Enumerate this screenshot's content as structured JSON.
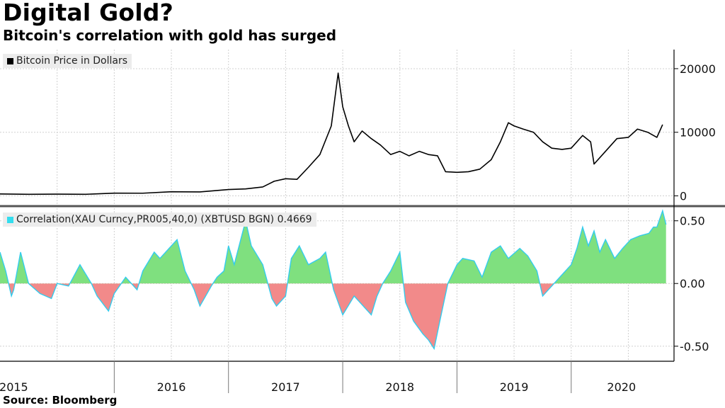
{
  "header": {
    "title": "Digital Gold?",
    "subtitle": "Bitcoin's correlation with gold has surged"
  },
  "footer": {
    "source": "Source: Bloomberg"
  },
  "colors": {
    "price_line": "#000000",
    "positive_fill": "#7fe07f",
    "negative_fill": "#f28a8a",
    "corr_line": "#33ccee"
  },
  "chart_data": [
    {
      "type": "line",
      "legend": "Bitcoin Price in Dollars",
      "ylim": [
        -1500,
        23000
      ],
      "yticks": [
        0,
        10000,
        20000
      ],
      "ytick_labels": [
        "0",
        "10000",
        "20000"
      ],
      "series": [
        {
          "name": "Bitcoin Price in Dollars",
          "x": [
            2015.0,
            2015.25,
            2015.5,
            2015.75,
            2016.0,
            2016.25,
            2016.5,
            2016.75,
            2017.0,
            2017.15,
            2017.3,
            2017.4,
            2017.5,
            2017.6,
            2017.7,
            2017.8,
            2017.9,
            2017.96,
            2018.0,
            2018.05,
            2018.1,
            2018.17,
            2018.25,
            2018.33,
            2018.42,
            2018.5,
            2018.58,
            2018.67,
            2018.75,
            2018.83,
            2018.9,
            2019.0,
            2019.1,
            2019.2,
            2019.3,
            2019.38,
            2019.45,
            2019.5,
            2019.58,
            2019.67,
            2019.75,
            2019.83,
            2019.92,
            2020.0,
            2020.1,
            2020.17,
            2020.2,
            2020.3,
            2020.4,
            2020.5,
            2020.58,
            2020.67,
            2020.75,
            2020.8
          ],
          "y": [
            300,
            250,
            280,
            250,
            430,
            420,
            650,
            620,
            1000,
            1100,
            1400,
            2300,
            2700,
            2600,
            4500,
            6500,
            11000,
            19300,
            14000,
            11000,
            8500,
            10200,
            9000,
            8000,
            6500,
            7000,
            6300,
            7000,
            6500,
            6300,
            3800,
            3700,
            3800,
            4200,
            5700,
            8500,
            11500,
            11000,
            10500,
            10000,
            8500,
            7500,
            7300,
            7500,
            9500,
            8500,
            5000,
            7000,
            9000,
            9200,
            10500,
            10000,
            9200,
            11200
          ]
        }
      ]
    },
    {
      "type": "area",
      "legend": "Correlation(XAU Curncy,PR005,40,0) (XBTUSD BGN) 0.4669",
      "ylim": [
        -0.62,
        0.6
      ],
      "yticks": [
        0.5,
        0.0,
        -0.5
      ],
      "ytick_labels": [
        "0.50",
        "0.00",
        "-0.50"
      ],
      "series": [
        {
          "name": "Correlation(XAU Curncy,PR005,40,0) (XBTUSD BGN)",
          "x": [
            2015.0,
            2015.05,
            2015.1,
            2015.12,
            2015.18,
            2015.25,
            2015.35,
            2015.45,
            2015.5,
            2015.6,
            2015.7,
            2015.8,
            2015.85,
            2015.95,
            2016.0,
            2016.1,
            2016.2,
            2016.25,
            2016.35,
            2016.4,
            2016.5,
            2016.55,
            2016.62,
            2016.7,
            2016.75,
            2016.85,
            2016.9,
            2016.96,
            2017.0,
            2017.05,
            2017.15,
            2017.2,
            2017.3,
            2017.38,
            2017.42,
            2017.5,
            2017.55,
            2017.62,
            2017.7,
            2017.8,
            2017.85,
            2017.92,
            2018.0,
            2018.1,
            2018.2,
            2018.25,
            2018.3,
            2018.35,
            2018.42,
            2018.5,
            2018.55,
            2018.62,
            2018.7,
            2018.75,
            2018.8,
            2018.85,
            2018.92,
            2019.0,
            2019.05,
            2019.15,
            2019.22,
            2019.3,
            2019.38,
            2019.45,
            2019.55,
            2019.62,
            2019.7,
            2019.75,
            2019.8,
            2019.85,
            2019.95,
            2020.0,
            2020.05,
            2020.1,
            2020.15,
            2020.2,
            2020.25,
            2020.3,
            2020.38,
            2020.45,
            2020.52,
            2020.6,
            2020.68,
            2020.72,
            2020.75,
            2020.8,
            2020.83
          ],
          "y": [
            0.25,
            0.1,
            -0.1,
            -0.05,
            0.25,
            0.0,
            -0.08,
            -0.12,
            0.0,
            -0.02,
            0.15,
            0.0,
            -0.1,
            -0.22,
            -0.08,
            0.05,
            -0.05,
            0.1,
            0.25,
            0.2,
            0.3,
            0.35,
            0.1,
            -0.05,
            -0.18,
            -0.02,
            0.05,
            0.1,
            0.3,
            0.15,
            0.5,
            0.3,
            0.15,
            -0.12,
            -0.18,
            -0.1,
            0.2,
            0.3,
            0.15,
            0.2,
            0.25,
            -0.05,
            -0.25,
            -0.1,
            -0.2,
            -0.25,
            -0.1,
            0.0,
            0.1,
            0.25,
            -0.15,
            -0.3,
            -0.4,
            -0.45,
            -0.52,
            -0.3,
            0.0,
            0.15,
            0.2,
            0.18,
            0.05,
            0.25,
            0.3,
            0.2,
            0.28,
            0.22,
            0.1,
            -0.1,
            -0.05,
            0.0,
            0.1,
            0.15,
            0.28,
            0.45,
            0.3,
            0.42,
            0.25,
            0.35,
            0.2,
            0.28,
            0.35,
            0.38,
            0.4,
            0.45,
            0.45,
            0.58,
            0.47
          ]
        }
      ]
    }
  ],
  "x_axis": {
    "labels": [
      "2015",
      "2016",
      "2017",
      "2018",
      "2019",
      "2020"
    ],
    "label_positions": [
      2015.12,
      2016.5,
      2017.5,
      2018.5,
      2019.5,
      2020.44
    ],
    "year_boundaries": [
      2016.0,
      2017.0,
      2018.0,
      2019.0,
      2020.0
    ]
  }
}
